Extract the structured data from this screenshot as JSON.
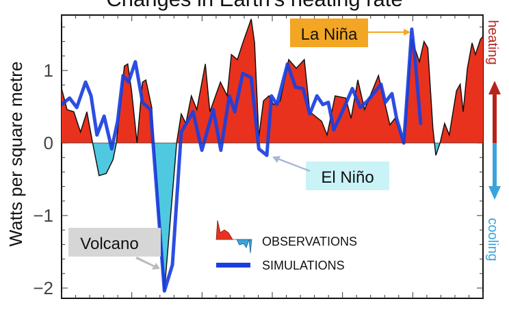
{
  "chart_data": {
    "type": "area",
    "title": "Changes in Earth's heating rate",
    "xlabel": "",
    "ylabel": "Watts per square metre",
    "ylim": [
      -2.1,
      1.76
    ],
    "xlim": [
      0,
      100
    ],
    "yticks": [
      -2,
      -1,
      0,
      1
    ],
    "ytick_labels": [
      "−2",
      "−1",
      "0",
      "1"
    ],
    "right_labels": {
      "top": "heating",
      "bottom": "cooling"
    },
    "colors": {
      "positive": "#e8321e",
      "negative": "#4fc9e0",
      "simulation": "#1a3fe0",
      "heating": "#b5231b",
      "cooling": "#3aa3db",
      "la_nina_box": "#f3a623",
      "el_nino_box": "#c9f3f6",
      "volcano_box": "#d6d6d6"
    },
    "legend": {
      "position": "bottom-center",
      "entries": [
        "OBSERVATIONS",
        "SIMULATIONS"
      ]
    },
    "annotations": [
      {
        "text": "La Niña",
        "target_x": 83.1
      },
      {
        "text": "El Niño",
        "target_x": 49.0
      },
      {
        "text": "Volcano",
        "target_x": 24.4
      }
    ],
    "series": [
      {
        "name": "OBSERVATIONS",
        "points": [
          [
            0,
            0.75
          ],
          [
            1.3,
            0.46
          ],
          [
            2.9,
            0.43
          ],
          [
            4.5,
            0.15
          ],
          [
            6.0,
            0.43
          ],
          [
            7.3,
            0.02
          ],
          [
            8.9,
            -0.45
          ],
          [
            10.6,
            -0.42
          ],
          [
            12.2,
            -0.23
          ],
          [
            13.0,
            0
          ],
          [
            14.9,
            1.06
          ],
          [
            15.7,
            1.09
          ],
          [
            16.6,
            0.72
          ],
          [
            17.9,
            0
          ],
          [
            19.2,
            0.84
          ],
          [
            20.0,
            0.87
          ],
          [
            21.4,
            0.49
          ],
          [
            21.9,
            0
          ],
          [
            24.4,
            -2.04
          ],
          [
            27.3,
            0
          ],
          [
            28.4,
            0.4
          ],
          [
            29.5,
            0.27
          ],
          [
            30.8,
            0.65
          ],
          [
            32.1,
            0.46
          ],
          [
            34.1,
            1.09
          ],
          [
            35.2,
            0.43
          ],
          [
            37.7,
            0.84
          ],
          [
            39.3,
            0.65
          ],
          [
            40.3,
            1.22
          ],
          [
            41.7,
            1.15
          ],
          [
            43.0,
            1.38
          ],
          [
            45.0,
            1.71
          ],
          [
            45.8,
            1.38
          ],
          [
            46.8,
            0.08
          ],
          [
            47.9,
            0.58
          ],
          [
            49.2,
            0.65
          ],
          [
            50.3,
            0.53
          ],
          [
            51.9,
            0.58
          ],
          [
            53.9,
            1.15
          ],
          [
            55.7,
            1.03
          ],
          [
            57.6,
            1.15
          ],
          [
            58.9,
            0.43
          ],
          [
            61.7,
            0.3
          ],
          [
            63.0,
            0.11
          ],
          [
            64.9,
            0.65
          ],
          [
            67.4,
            0.62
          ],
          [
            68.7,
            0.34
          ],
          [
            70.3,
            0.87
          ],
          [
            71.9,
            0.46
          ],
          [
            75.2,
            0.93
          ],
          [
            77.9,
            0.25
          ],
          [
            79.1,
            0.34
          ],
          [
            81.2,
            0
          ],
          [
            83.1,
            1.43
          ],
          [
            84.9,
            1.12
          ],
          [
            86.0,
            1.4
          ],
          [
            86.9,
            1.31
          ],
          [
            88.1,
            0.21
          ],
          [
            88.8,
            -0.17
          ],
          [
            89.8,
            0
          ],
          [
            90.9,
            0.27
          ],
          [
            92.0,
            0.11
          ],
          [
            93.7,
            0.72
          ],
          [
            94.6,
            0.81
          ],
          [
            95.3,
            0.43
          ],
          [
            96.3,
            1.03
          ],
          [
            97.4,
            1.38
          ],
          [
            98.2,
            1.22
          ],
          [
            99.4,
            1.43
          ],
          [
            100,
            1.47
          ]
        ]
      },
      {
        "name": "SIMULATIONS",
        "points": [
          [
            0,
            0.53
          ],
          [
            1.9,
            0.62
          ],
          [
            3.6,
            0.49
          ],
          [
            5.7,
            0.84
          ],
          [
            7.0,
            0.65
          ],
          [
            8.4,
            0.11
          ],
          [
            10.1,
            0.37
          ],
          [
            11.9,
            -0.08
          ],
          [
            13.3,
            0.3
          ],
          [
            14.6,
            0.93
          ],
          [
            15.9,
            0.84
          ],
          [
            17.5,
            1.12
          ],
          [
            19.2,
            0.56
          ],
          [
            21.1,
            0.46
          ],
          [
            24.4,
            -2.04
          ],
          [
            26.3,
            -1.68
          ],
          [
            28.4,
            0.15
          ],
          [
            31.2,
            0.43
          ],
          [
            33.3,
            -0.1
          ],
          [
            36.0,
            0.46
          ],
          [
            37.8,
            -0.1
          ],
          [
            39.8,
            0.65
          ],
          [
            41.1,
            0.43
          ],
          [
            43.0,
            0.96
          ],
          [
            45.0,
            0.9
          ],
          [
            46.8,
            -0.08
          ],
          [
            48.7,
            -0.17
          ],
          [
            49.8,
            0.65
          ],
          [
            51.1,
            0.53
          ],
          [
            53.6,
            1.09
          ],
          [
            55.5,
            0.77
          ],
          [
            57.3,
            0.75
          ],
          [
            58.9,
            0.4
          ],
          [
            60.6,
            0.65
          ],
          [
            62.0,
            0.53
          ],
          [
            63.3,
            0.56
          ],
          [
            64.6,
            0.18
          ],
          [
            66.6,
            0.43
          ],
          [
            69.0,
            0.75
          ],
          [
            70.9,
            0.49
          ],
          [
            72.6,
            0.58
          ],
          [
            75.8,
            0.81
          ],
          [
            76.8,
            0.56
          ],
          [
            78.4,
            0.68
          ],
          [
            79.5,
            0.34
          ],
          [
            81.2,
            0
          ],
          [
            83.1,
            1.57
          ],
          [
            83.9,
            1.15
          ],
          [
            85.2,
            0.27
          ]
        ]
      }
    ]
  }
}
